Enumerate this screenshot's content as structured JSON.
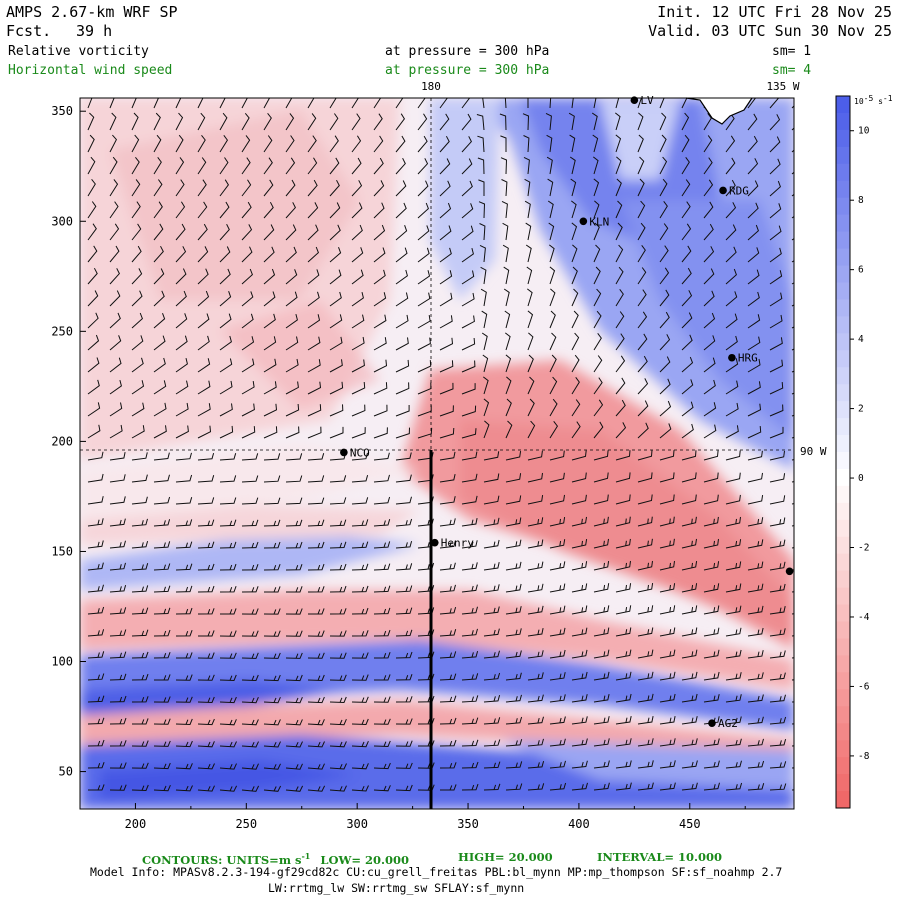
{
  "header": {
    "model": "AMPS 2.67-km WRF SP",
    "fcst_label": "Fcst.",
    "fcst_value": "39 h",
    "init": "Init. 12 UTC Fri 28 Nov 25",
    "valid": "Valid. 03 UTC Sun 30 Nov 25",
    "field1": "Relative vorticity",
    "field1_pressure": "at pressure =  300 hPa",
    "field1_sm": "sm= 1",
    "field2": "Horizontal wind speed",
    "field2_pressure": "at pressure =  300 hPa",
    "field2_sm": "sm= 4"
  },
  "map_labels": {
    "lon_180": "180",
    "lon_135w": "135 W",
    "lon_90w": "90 W"
  },
  "colors": {
    "positive": "#4a5ee8",
    "negative": "#f06a6a",
    "green_text": "#1a8a1a"
  },
  "stations": [
    {
      "name": "LV",
      "x": 425,
      "y": 355
    },
    {
      "name": "RDG",
      "x": 465,
      "y": 314
    },
    {
      "name": "KLN",
      "x": 402,
      "y": 300
    },
    {
      "name": "HRG",
      "x": 469,
      "y": 238
    },
    {
      "name": "NCO",
      "x": 294,
      "y": 195
    },
    {
      "name": "Henry",
      "x": 335,
      "y": 154
    },
    {
      "name": "",
      "x": 495,
      "y": 141
    },
    {
      "name": "AG2",
      "x": 460,
      "y": 72
    }
  ],
  "footer": {
    "contours": "CONTOURS:  UNITS=m s",
    "units_sup": "-1",
    "low": "LOW=  20.000",
    "high": "HIGH=  20.000",
    "interval": "INTERVAL=   10.000",
    "model_info": "Model Info: MPASv8.2.3-194-gf29cd82c CU:cu_grell_freitas PBL:bl_mynn MP:mp_thompson SF:sf_noahmp 2.7",
    "model_info2": "LW:rrtmg_lw SW:rrtmg_sw SFLAY:sf_mynn"
  },
  "chart_data": {
    "type": "heatmap",
    "title": "Relative vorticity",
    "x_ticks": [
      200,
      250,
      300,
      350,
      400,
      450
    ],
    "y_ticks": [
      50,
      100,
      150,
      200,
      250,
      300,
      350
    ],
    "xlim": [
      175,
      497
    ],
    "ylim": [
      33,
      356
    ],
    "colorbar": {
      "unit": "10-5 s-1",
      "unit_base": "10",
      "unit_exp": "-5",
      "unit_rest": "s",
      "unit_rest_exp": "-1",
      "ticks": [
        10,
        8,
        6,
        4,
        2,
        0,
        -2,
        -4,
        -6,
        -8
      ],
      "range": [
        -9.5,
        11
      ]
    },
    "overlay": "Horizontal wind speed barbs",
    "cross_section_x": 335
  }
}
